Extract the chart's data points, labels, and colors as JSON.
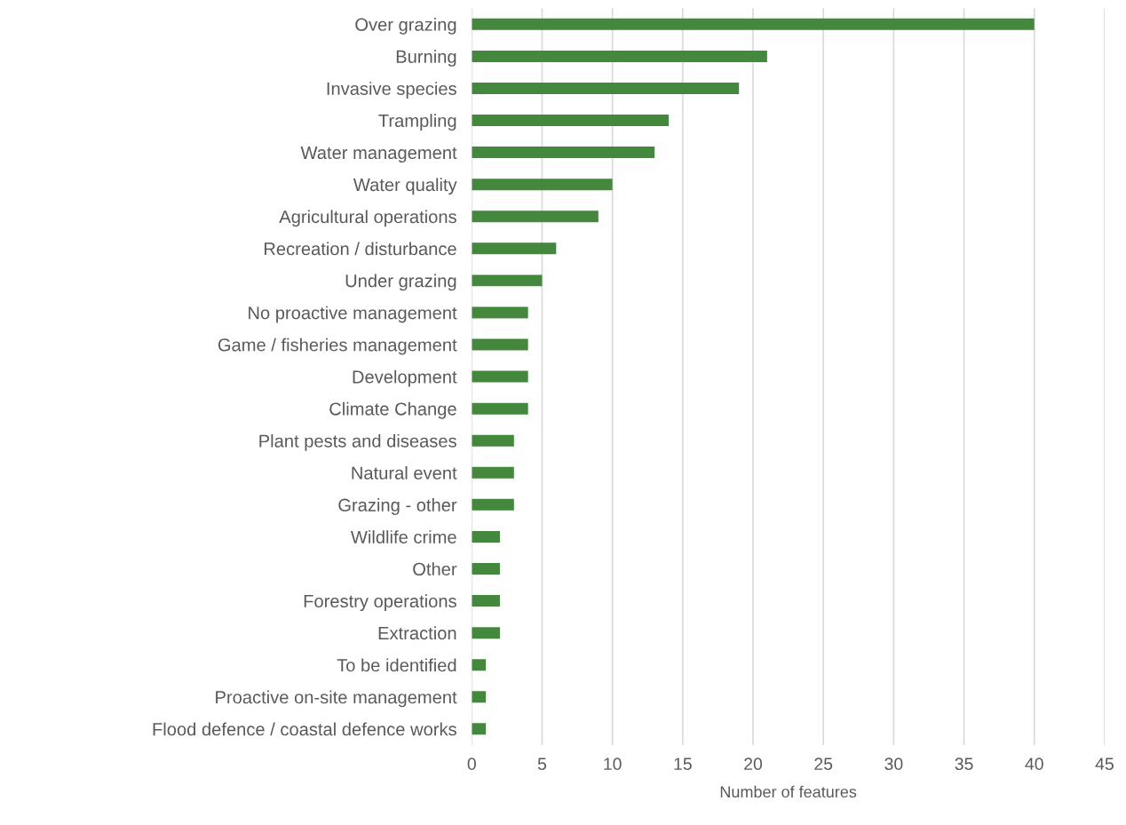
{
  "chart_data": {
    "type": "bar",
    "orientation": "horizontal",
    "xlabel": "Number of features",
    "categories": [
      "Over grazing",
      "Burning",
      "Invasive species",
      "Trampling",
      "Water management",
      "Water quality",
      "Agricultural operations",
      "Recreation / disturbance",
      "Under grazing",
      "No proactive management",
      "Game / fisheries management",
      "Development",
      "Climate Change",
      "Plant pests and diseases",
      "Natural event",
      "Grazing - other",
      "Wildlife crime",
      "Other",
      "Forestry operations",
      "Extraction",
      "To be identified",
      "Proactive on-site management",
      "Flood defence / coastal defence works"
    ],
    "values": [
      40,
      21,
      19,
      14,
      13,
      10,
      9,
      6,
      5,
      4,
      4,
      4,
      4,
      3,
      3,
      3,
      2,
      2,
      2,
      2,
      1,
      1,
      1
    ],
    "color": "#43883c",
    "xlim": [
      0,
      45
    ],
    "xticks": [
      0,
      5,
      10,
      15,
      20,
      25,
      30,
      35,
      40,
      45
    ],
    "grid": "x"
  }
}
